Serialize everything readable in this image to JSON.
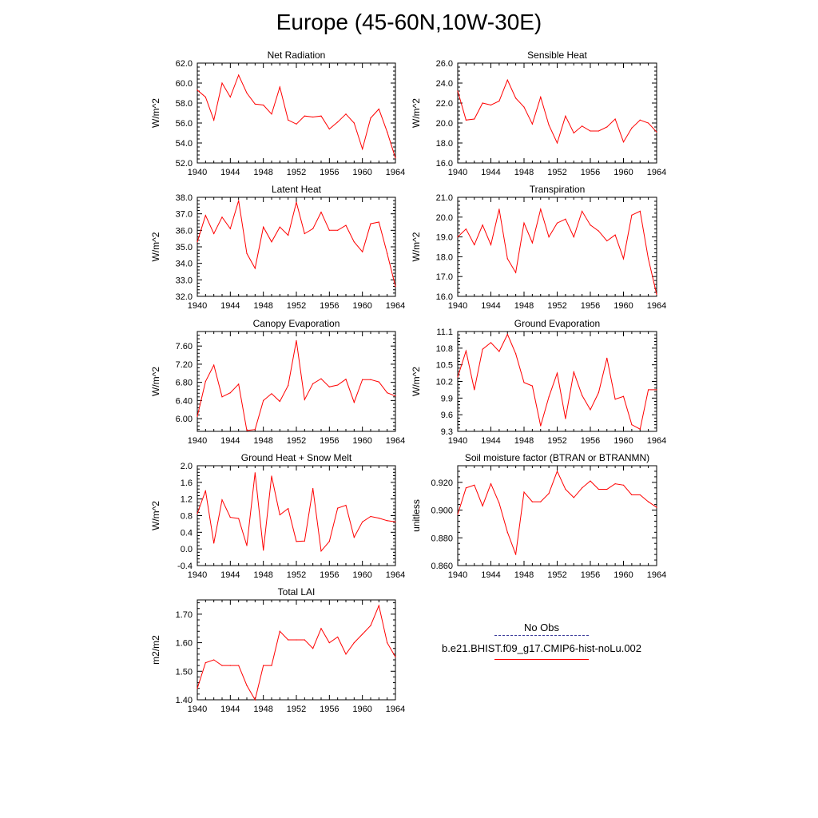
{
  "figure": {
    "title": "Europe (45-60N,10W-30E)"
  },
  "chart_data": [
    {
      "type": "line",
      "title": "Net Radiation",
      "ylabel": "W/m^2",
      "ylim": [
        52.0,
        62.0
      ],
      "yticks": [
        52.0,
        54.0,
        56.0,
        58.0,
        60.0,
        62.0
      ],
      "ytick_labels": [
        "52.0",
        "54.0",
        "56.0",
        "58.0",
        "60.0",
        "62.0"
      ],
      "xlim": [
        1940,
        1964
      ],
      "xticks": [
        1940,
        1944,
        1948,
        1952,
        1956,
        1960,
        1964
      ],
      "x": [
        1940,
        1941,
        1942,
        1943,
        1944,
        1945,
        1946,
        1947,
        1948,
        1949,
        1950,
        1951,
        1952,
        1953,
        1954,
        1955,
        1956,
        1957,
        1958,
        1959,
        1960,
        1961,
        1962,
        1963,
        1964
      ],
      "series": [
        {
          "color": "#ff0000",
          "values": [
            59.3,
            58.6,
            56.3,
            60.0,
            58.6,
            60.8,
            59.0,
            57.9,
            57.8,
            56.9,
            59.6,
            56.3,
            55.9,
            56.7,
            56.6,
            56.7,
            55.4,
            56.1,
            56.9,
            56.0,
            53.4,
            56.5,
            57.4,
            55.1,
            52.5
          ]
        }
      ]
    },
    {
      "type": "line",
      "title": "Sensible Heat",
      "ylabel": "W/m^2",
      "ylim": [
        16.0,
        26.0
      ],
      "yticks": [
        16.0,
        18.0,
        20.0,
        22.0,
        24.0,
        26.0
      ],
      "ytick_labels": [
        "16.0",
        "18.0",
        "20.0",
        "22.0",
        "24.0",
        "26.0"
      ],
      "xlim": [
        1940,
        1964
      ],
      "xticks": [
        1940,
        1944,
        1948,
        1952,
        1956,
        1960,
        1964
      ],
      "x": [
        1940,
        1941,
        1942,
        1943,
        1944,
        1945,
        1946,
        1947,
        1948,
        1949,
        1950,
        1951,
        1952,
        1953,
        1954,
        1955,
        1956,
        1957,
        1958,
        1959,
        1960,
        1961,
        1962,
        1963,
        1964
      ],
      "series": [
        {
          "color": "#ff0000",
          "values": [
            23.2,
            20.3,
            20.4,
            22.0,
            21.8,
            22.2,
            24.3,
            22.5,
            21.6,
            19.9,
            22.6,
            19.8,
            18.0,
            20.7,
            19.0,
            19.7,
            19.2,
            19.2,
            19.6,
            20.4,
            18.1,
            19.5,
            20.3,
            20.0,
            19.1
          ]
        }
      ]
    },
    {
      "type": "line",
      "title": "Latent Heat",
      "ylabel": "W/m^2",
      "ylim": [
        32.0,
        38.0
      ],
      "yticks": [
        32.0,
        33.0,
        34.0,
        35.0,
        36.0,
        37.0,
        38.0
      ],
      "ytick_labels": [
        "32.0",
        "33.0",
        "34.0",
        "35.0",
        "36.0",
        "37.0",
        "38.0"
      ],
      "xlim": [
        1940,
        1964
      ],
      "xticks": [
        1940,
        1944,
        1948,
        1952,
        1956,
        1960,
        1964
      ],
      "x": [
        1940,
        1941,
        1942,
        1943,
        1944,
        1945,
        1946,
        1947,
        1948,
        1949,
        1950,
        1951,
        1952,
        1953,
        1954,
        1955,
        1956,
        1957,
        1958,
        1959,
        1960,
        1961,
        1962,
        1963,
        1964
      ],
      "series": [
        {
          "color": "#ff0000",
          "values": [
            35.3,
            36.9,
            35.8,
            36.8,
            36.1,
            37.8,
            34.6,
            33.7,
            36.2,
            35.3,
            36.2,
            35.7,
            37.7,
            35.8,
            36.1,
            37.1,
            36.0,
            36.0,
            36.3,
            35.3,
            34.7,
            36.4,
            36.5,
            34.6,
            32.6
          ]
        }
      ]
    },
    {
      "type": "line",
      "title": "Transpiration",
      "ylabel": "W/m^2",
      "ylim": [
        16.0,
        21.0
      ],
      "yticks": [
        16.0,
        17.0,
        18.0,
        19.0,
        20.0,
        21.0
      ],
      "ytick_labels": [
        "16.0",
        "17.0",
        "18.0",
        "19.0",
        "20.0",
        "21.0"
      ],
      "xlim": [
        1940,
        1964
      ],
      "xticks": [
        1940,
        1944,
        1948,
        1952,
        1956,
        1960,
        1964
      ],
      "x": [
        1940,
        1941,
        1942,
        1943,
        1944,
        1945,
        1946,
        1947,
        1948,
        1949,
        1950,
        1951,
        1952,
        1953,
        1954,
        1955,
        1956,
        1957,
        1958,
        1959,
        1960,
        1961,
        1962,
        1963,
        1964
      ],
      "series": [
        {
          "color": "#ff0000",
          "values": [
            19.0,
            19.4,
            18.6,
            19.6,
            18.6,
            20.4,
            17.9,
            17.2,
            19.7,
            18.7,
            20.4,
            19.0,
            19.7,
            19.9,
            19.0,
            20.3,
            19.6,
            19.3,
            18.8,
            19.1,
            17.9,
            20.1,
            20.3,
            17.9,
            16.1
          ]
        }
      ]
    },
    {
      "type": "line",
      "title": "Canopy Evaporation",
      "ylabel": "W/m^2",
      "ylim": [
        5.72,
        7.92
      ],
      "yticks": [
        6.0,
        6.4,
        6.8,
        7.2,
        7.6
      ],
      "ytick_labels": [
        "6.00",
        "6.40",
        "6.80",
        "7.20",
        "7.60"
      ],
      "xlim": [
        1940,
        1964
      ],
      "xticks": [
        1940,
        1944,
        1948,
        1952,
        1956,
        1960,
        1964
      ],
      "x": [
        1940,
        1941,
        1942,
        1943,
        1944,
        1945,
        1946,
        1947,
        1948,
        1949,
        1950,
        1951,
        1952,
        1953,
        1954,
        1955,
        1956,
        1957,
        1958,
        1959,
        1960,
        1961,
        1962,
        1963,
        1964
      ],
      "series": [
        {
          "color": "#ff0000",
          "values": [
            6.05,
            6.82,
            7.18,
            6.48,
            6.57,
            6.76,
            5.74,
            5.76,
            6.4,
            6.55,
            6.38,
            6.73,
            7.72,
            6.42,
            6.77,
            6.88,
            6.7,
            6.74,
            6.87,
            6.36,
            6.86,
            6.86,
            6.81,
            6.57,
            6.5
          ]
        }
      ]
    },
    {
      "type": "line",
      "title": "Ground Evaporation",
      "ylabel": "W/m^2",
      "ylim": [
        9.3,
        11.1
      ],
      "yticks": [
        9.3,
        9.6,
        9.9,
        10.2,
        10.5,
        10.8,
        11.1
      ],
      "ytick_labels": [
        "9.3",
        "9.6",
        "9.9",
        "10.2",
        "10.5",
        "10.8",
        "11.1"
      ],
      "xlim": [
        1940,
        1964
      ],
      "xticks": [
        1940,
        1944,
        1948,
        1952,
        1956,
        1960,
        1964
      ],
      "x": [
        1940,
        1941,
        1942,
        1943,
        1944,
        1945,
        1946,
        1947,
        1948,
        1949,
        1950,
        1951,
        1952,
        1953,
        1954,
        1955,
        1956,
        1957,
        1958,
        1959,
        1960,
        1961,
        1962,
        1963,
        1964
      ],
      "series": [
        {
          "color": "#ff0000",
          "values": [
            10.28,
            10.75,
            10.05,
            10.78,
            10.9,
            10.74,
            11.05,
            10.7,
            10.18,
            10.12,
            9.4,
            9.92,
            10.35,
            9.53,
            10.37,
            9.95,
            9.69,
            10.0,
            10.62,
            9.88,
            9.93,
            9.42,
            9.34,
            10.05,
            10.05
          ]
        }
      ]
    },
    {
      "type": "line",
      "title": "Ground Heat + Snow Melt",
      "ylabel": "W/m^2",
      "ylim": [
        -0.4,
        2.0
      ],
      "yticks": [
        -0.4,
        0.0,
        0.4,
        0.8,
        1.2,
        1.6,
        2.0
      ],
      "ytick_labels": [
        "-0.4",
        "0.0",
        "0.4",
        "0.8",
        "1.2",
        "1.6",
        "2.0"
      ],
      "xlim": [
        1940,
        1964
      ],
      "xticks": [
        1940,
        1944,
        1948,
        1952,
        1956,
        1960,
        1964
      ],
      "x": [
        1940,
        1941,
        1942,
        1943,
        1944,
        1945,
        1946,
        1947,
        1948,
        1949,
        1950,
        1951,
        1952,
        1953,
        1954,
        1955,
        1956,
        1957,
        1958,
        1959,
        1960,
        1961,
        1962,
        1963,
        1964
      ],
      "series": [
        {
          "color": "#ff0000",
          "values": [
            0.85,
            1.4,
            0.14,
            1.18,
            0.76,
            0.73,
            0.08,
            1.83,
            -0.03,
            1.75,
            0.82,
            0.97,
            0.18,
            0.19,
            1.45,
            -0.05,
            0.18,
            0.98,
            1.05,
            0.28,
            0.65,
            0.78,
            0.74,
            0.68,
            0.65
          ]
        }
      ]
    },
    {
      "type": "line",
      "title": "Soil moisture factor (BTRAN or BTRANMN)",
      "ylabel": "unitless",
      "ylim": [
        0.86,
        0.932
      ],
      "yticks": [
        0.86,
        0.88,
        0.9,
        0.92
      ],
      "ytick_labels": [
        "0.860",
        "0.880",
        "0.900",
        "0.920"
      ],
      "xlim": [
        1940,
        1964
      ],
      "xticks": [
        1940,
        1944,
        1948,
        1952,
        1956,
        1960,
        1964
      ],
      "x": [
        1940,
        1941,
        1942,
        1943,
        1944,
        1945,
        1946,
        1947,
        1948,
        1949,
        1950,
        1951,
        1952,
        1953,
        1954,
        1955,
        1956,
        1957,
        1958,
        1959,
        1960,
        1961,
        1962,
        1963,
        1964
      ],
      "series": [
        {
          "color": "#ff0000",
          "values": [
            0.897,
            0.916,
            0.918,
            0.903,
            0.919,
            0.905,
            0.884,
            0.868,
            0.913,
            0.906,
            0.906,
            0.912,
            0.928,
            0.915,
            0.909,
            0.916,
            0.921,
            0.915,
            0.915,
            0.919,
            0.918,
            0.911,
            0.911,
            0.906,
            0.902
          ]
        }
      ]
    },
    {
      "type": "line",
      "title": "Total LAI",
      "ylabel": "m2/m2",
      "ylim": [
        1.4,
        1.75
      ],
      "yticks": [
        1.4,
        1.5,
        1.6,
        1.7
      ],
      "ytick_labels": [
        "1.40",
        "1.50",
        "1.60",
        "1.70"
      ],
      "xlim": [
        1940,
        1964
      ],
      "xticks": [
        1940,
        1944,
        1948,
        1952,
        1956,
        1960,
        1964
      ],
      "x": [
        1940,
        1941,
        1942,
        1943,
        1944,
        1945,
        1946,
        1947,
        1948,
        1949,
        1950,
        1951,
        1952,
        1953,
        1954,
        1955,
        1956,
        1957,
        1958,
        1959,
        1960,
        1961,
        1962,
        1963,
        1964
      ],
      "series": [
        {
          "color": "#ff0000",
          "values": [
            1.44,
            1.53,
            1.54,
            1.52,
            1.52,
            1.52,
            1.45,
            1.4,
            1.52,
            1.52,
            1.64,
            1.61,
            1.61,
            1.61,
            1.58,
            1.65,
            1.6,
            1.62,
            1.56,
            1.6,
            1.63,
            1.66,
            1.73,
            1.6,
            1.55
          ]
        }
      ]
    }
  ],
  "legend": {
    "obs_label": "No Obs",
    "model_label": "b.e21.BHIST.f09_g17.CMIP6-hist-noLu.002",
    "obs_color": "#3a3a9a",
    "model_color": "#ff0000"
  }
}
